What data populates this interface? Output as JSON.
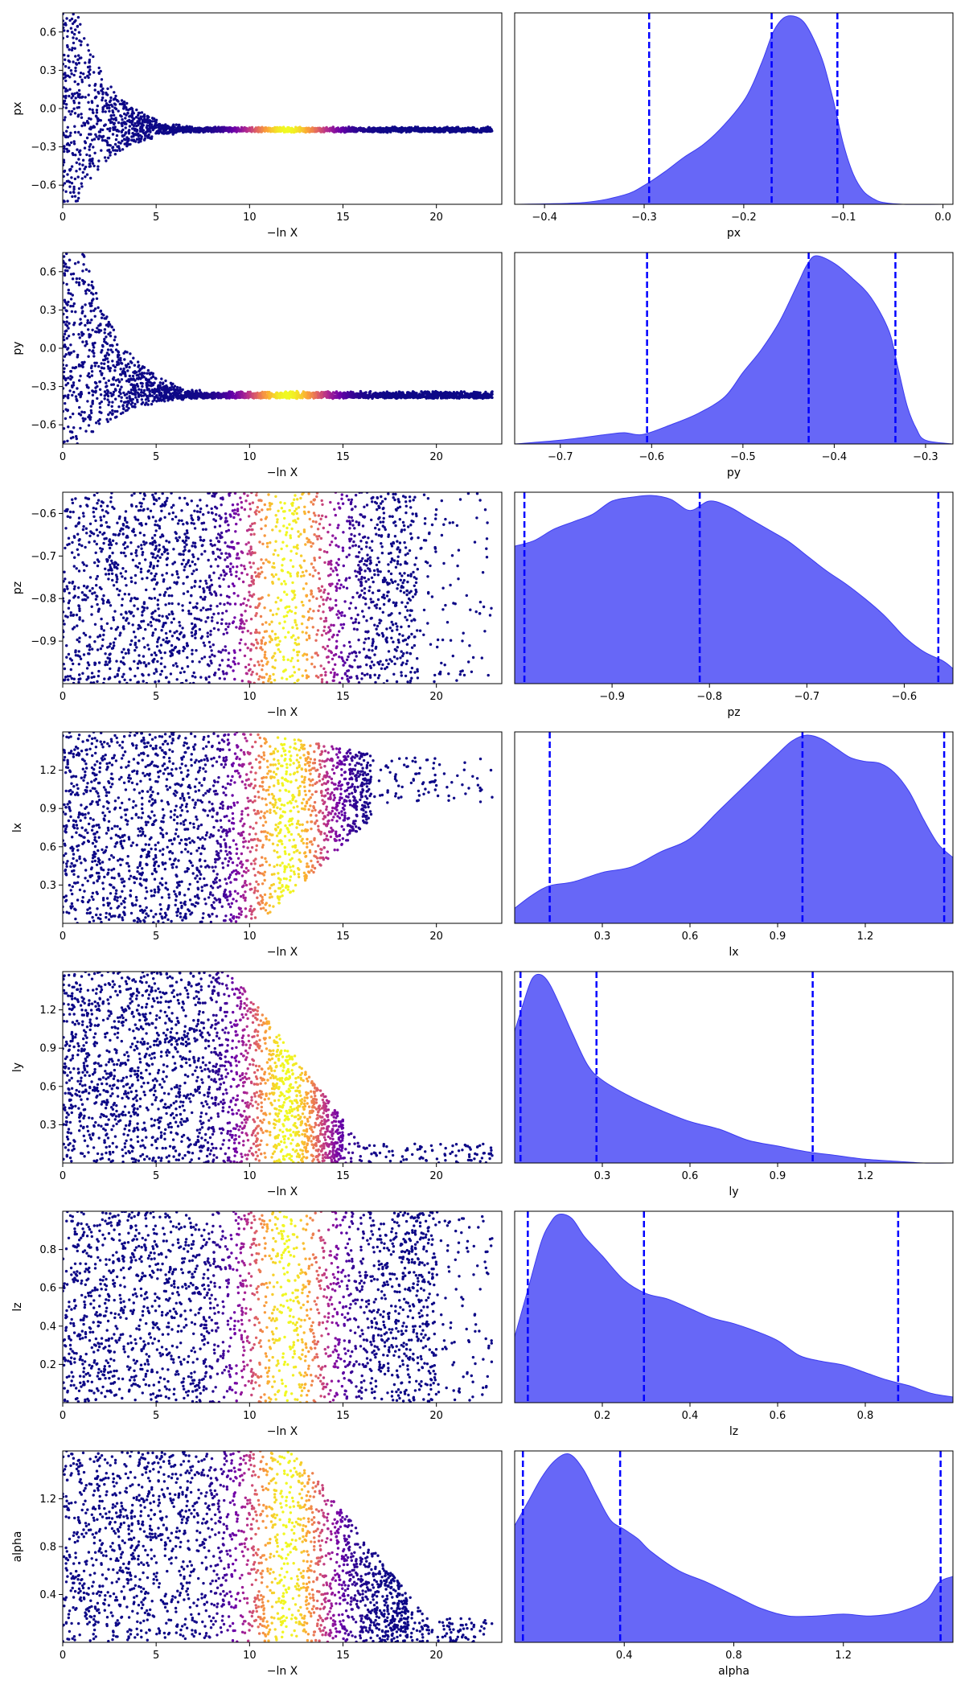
{
  "figure": {
    "trace_color_map": "plasma",
    "posterior_fill_color": "#5f5ff7",
    "posterior_edge_color": "#3b3bf0",
    "quantile_line_color": "#0000ff",
    "quantile_line_style": "dashed",
    "background_color": "#ffffff"
  },
  "chart_data": [
    {
      "type": "scatter",
      "role": "trace",
      "param": "px",
      "xlabel": "−ln X",
      "ylabel": "px",
      "xlim": [
        0,
        23.5
      ],
      "ylim": [
        -0.75,
        0.75
      ],
      "xticks": [
        0,
        5,
        10,
        15,
        20
      ],
      "xtick_labels": [
        "0",
        "5",
        "10",
        "15",
        "20"
      ],
      "yticks": [
        0.6,
        0.3,
        0.0,
        -0.3,
        -0.6
      ],
      "ytick_labels": [
        "0.6",
        "0.3",
        "0.0",
        "−0.3",
        "−0.6"
      ],
      "color_peak_x": 12.0,
      "shape": "funnel",
      "converged_value": -0.17,
      "converge_start": 0.8,
      "converge_rate": 0.55,
      "envelope_tail": 0.03
    },
    {
      "type": "area",
      "role": "posterior",
      "param": "px",
      "xlabel": "px",
      "xlim": [
        -0.43,
        0.01
      ],
      "xticks": [
        -0.4,
        -0.3,
        -0.2,
        -0.1,
        0.0
      ],
      "xtick_labels": [
        "−0.4",
        "−0.3",
        "−0.2",
        "−0.1",
        "0.0"
      ],
      "x": [
        -0.43,
        -0.36,
        -0.32,
        -0.3,
        -0.28,
        -0.26,
        -0.24,
        -0.22,
        -0.2,
        -0.19,
        -0.18,
        -0.17,
        -0.16,
        -0.15,
        -0.14,
        -0.13,
        -0.12,
        -0.11,
        -0.1,
        -0.09,
        -0.08,
        -0.07,
        -0.06,
        -0.04,
        0.01
      ],
      "y": [
        0.0,
        0.01,
        0.05,
        0.1,
        0.17,
        0.25,
        0.32,
        0.42,
        0.55,
        0.65,
        0.78,
        0.92,
        0.99,
        1.0,
        0.97,
        0.88,
        0.75,
        0.55,
        0.32,
        0.16,
        0.07,
        0.03,
        0.01,
        0.0,
        0.0
      ],
      "quantiles": [
        -0.295,
        -0.172,
        -0.106
      ]
    },
    {
      "type": "scatter",
      "role": "trace",
      "param": "py",
      "xlabel": "−ln X",
      "ylabel": "py",
      "xlim": [
        0,
        23.5
      ],
      "ylim": [
        -0.75,
        0.75
      ],
      "xticks": [
        0,
        5,
        10,
        15,
        20
      ],
      "xtick_labels": [
        "0",
        "5",
        "10",
        "15",
        "20"
      ],
      "yticks": [
        0.6,
        0.3,
        0.0,
        -0.3,
        -0.6
      ],
      "ytick_labels": [
        "0.6",
        "0.3",
        "0.0",
        "−0.3",
        "−0.6"
      ],
      "color_peak_x": 12.0,
      "shape": "funnel",
      "converged_value": -0.38,
      "converge_start": 1.2,
      "converge_rate": 0.5,
      "envelope_tail": 0.04
    },
    {
      "type": "area",
      "role": "posterior",
      "param": "py",
      "xlabel": "py",
      "xlim": [
        -0.75,
        -0.27
      ],
      "xticks": [
        -0.7,
        -0.6,
        -0.5,
        -0.4,
        -0.3
      ],
      "xtick_labels": [
        "−0.7",
        "−0.6",
        "−0.5",
        "−0.4",
        "−0.3"
      ],
      "x": [
        -0.75,
        -0.7,
        -0.65,
        -0.63,
        -0.61,
        -0.58,
        -0.55,
        -0.52,
        -0.5,
        -0.48,
        -0.46,
        -0.44,
        -0.43,
        -0.42,
        -0.4,
        -0.38,
        -0.36,
        -0.34,
        -0.33,
        -0.32,
        -0.31,
        -0.3,
        -0.27
      ],
      "y": [
        0.0,
        0.02,
        0.05,
        0.06,
        0.05,
        0.1,
        0.16,
        0.25,
        0.38,
        0.5,
        0.65,
        0.85,
        0.95,
        1.0,
        0.96,
        0.88,
        0.78,
        0.6,
        0.4,
        0.2,
        0.08,
        0.02,
        0.0
      ],
      "quantiles": [
        -0.605,
        -0.428,
        -0.333
      ]
    },
    {
      "type": "scatter",
      "role": "trace",
      "param": "pz",
      "xlabel": "−ln X",
      "ylabel": "pz",
      "xlim": [
        0,
        23.5
      ],
      "ylim": [
        -1.0,
        -0.55
      ],
      "xticks": [
        0,
        5,
        10,
        15,
        20
      ],
      "xtick_labels": [
        "0",
        "5",
        "10",
        "15",
        "20"
      ],
      "yticks": [
        -0.6,
        -0.7,
        -0.8,
        -0.9
      ],
      "ytick_labels": [
        "−0.6",
        "−0.7",
        "−0.8",
        "−0.9"
      ],
      "color_peak_x": 12.0,
      "shape": "uniform",
      "sparse_start": 17.0,
      "x_extent": 23.0
    },
    {
      "type": "area",
      "role": "posterior",
      "param": "pz",
      "xlabel": "pz",
      "xlim": [
        -1.0,
        -0.55
      ],
      "xticks": [
        -0.9,
        -0.8,
        -0.7,
        -0.6
      ],
      "xtick_labels": [
        "−0.9",
        "−0.8",
        "−0.7",
        "−0.6"
      ],
      "x": [
        -1.0,
        -0.98,
        -0.96,
        -0.94,
        -0.92,
        -0.9,
        -0.88,
        -0.86,
        -0.84,
        -0.82,
        -0.8,
        -0.78,
        -0.76,
        -0.74,
        -0.72,
        -0.7,
        -0.68,
        -0.66,
        -0.64,
        -0.62,
        -0.6,
        -0.58,
        -0.56,
        -0.55
      ],
      "y": [
        0.73,
        0.76,
        0.82,
        0.86,
        0.9,
        0.97,
        0.99,
        1.0,
        0.98,
        0.92,
        0.97,
        0.94,
        0.88,
        0.82,
        0.76,
        0.68,
        0.6,
        0.53,
        0.45,
        0.36,
        0.25,
        0.17,
        0.12,
        0.08
      ],
      "quantiles": [
        -0.99,
        -0.81,
        -0.565
      ]
    },
    {
      "type": "scatter",
      "role": "trace",
      "param": "lx",
      "xlabel": "−ln X",
      "ylabel": "lx",
      "xlim": [
        0,
        23.5
      ],
      "ylim": [
        0.0,
        1.5
      ],
      "xticks": [
        0,
        5,
        10,
        15,
        20
      ],
      "xtick_labels": [
        "0",
        "5",
        "10",
        "15",
        "20"
      ],
      "yticks": [
        1.2,
        0.9,
        0.6,
        0.3
      ],
      "ytick_labels": [
        "1.2",
        "0.9",
        "0.6",
        "0.3"
      ],
      "color_peak_x": 12.0,
      "shape": "narrow_up",
      "narrow_start": 10.5,
      "narrow_to": [
        0.95,
        1.3
      ],
      "x_extent": 23.0
    },
    {
      "type": "area",
      "role": "posterior",
      "param": "lx",
      "xlabel": "lx",
      "xlim": [
        0.0,
        1.5
      ],
      "xticks": [
        0.3,
        0.6,
        0.9,
        1.2
      ],
      "xtick_labels": [
        "0.3",
        "0.6",
        "0.9",
        "1.2"
      ],
      "x": [
        0.0,
        0.06,
        0.12,
        0.2,
        0.3,
        0.4,
        0.5,
        0.6,
        0.7,
        0.8,
        0.9,
        0.95,
        1.0,
        1.05,
        1.1,
        1.15,
        1.2,
        1.25,
        1.3,
        1.35,
        1.4,
        1.45,
        1.5
      ],
      "y": [
        0.08,
        0.15,
        0.2,
        0.22,
        0.27,
        0.3,
        0.38,
        0.45,
        0.6,
        0.75,
        0.9,
        0.97,
        1.0,
        0.98,
        0.93,
        0.88,
        0.86,
        0.85,
        0.8,
        0.7,
        0.55,
        0.42,
        0.35
      ],
      "quantiles": [
        0.12,
        0.985,
        1.47
      ]
    },
    {
      "type": "scatter",
      "role": "trace",
      "param": "ly",
      "xlabel": "−ln X",
      "ylabel": "ly",
      "xlim": [
        0,
        23.5
      ],
      "ylim": [
        0.0,
        1.5
      ],
      "xticks": [
        0,
        5,
        10,
        15,
        20
      ],
      "xtick_labels": [
        "0",
        "5",
        "10",
        "15",
        "20"
      ],
      "yticks": [
        1.2,
        0.9,
        0.6,
        0.3
      ],
      "ytick_labels": [
        "1.2",
        "0.9",
        "0.6",
        "0.3"
      ],
      "color_peak_x": 12.0,
      "shape": "narrow_down",
      "narrow_start": 9.0,
      "narrow_to": [
        0.0,
        0.15
      ],
      "x_extent": 23.0
    },
    {
      "type": "area",
      "role": "posterior",
      "param": "ly",
      "xlabel": "ly",
      "xlim": [
        0.0,
        1.5
      ],
      "xticks": [
        0.3,
        0.6,
        0.9,
        1.2
      ],
      "xtick_labels": [
        "0.3",
        "0.6",
        "0.9",
        "1.2"
      ],
      "x": [
        0.0,
        0.03,
        0.06,
        0.09,
        0.12,
        0.16,
        0.2,
        0.25,
        0.3,
        0.4,
        0.5,
        0.6,
        0.7,
        0.8,
        0.9,
        1.0,
        1.1,
        1.2,
        1.3,
        1.4,
        1.5
      ],
      "y": [
        0.7,
        0.85,
        0.98,
        1.0,
        0.95,
        0.82,
        0.68,
        0.52,
        0.44,
        0.35,
        0.28,
        0.22,
        0.18,
        0.12,
        0.09,
        0.06,
        0.04,
        0.02,
        0.01,
        0.0,
        0.0
      ],
      "quantiles": [
        0.02,
        0.28,
        1.02
      ]
    },
    {
      "type": "scatter",
      "role": "trace",
      "param": "lz",
      "xlabel": "−ln X",
      "ylabel": "lz",
      "xlim": [
        0,
        23.5
      ],
      "ylim": [
        0.0,
        1.0
      ],
      "xticks": [
        0,
        5,
        10,
        15,
        20
      ],
      "xtick_labels": [
        "0",
        "5",
        "10",
        "15",
        "20"
      ],
      "yticks": [
        0.8,
        0.6,
        0.4,
        0.2
      ],
      "ytick_labels": [
        "0.8",
        "0.6",
        "0.4",
        "0.2"
      ],
      "color_peak_x": 12.0,
      "shape": "uniform",
      "sparse_start": 18.0,
      "x_extent": 23.0
    },
    {
      "type": "area",
      "role": "posterior",
      "param": "lz",
      "xlabel": "lz",
      "xlim": [
        0.0,
        1.0
      ],
      "xticks": [
        0.2,
        0.4,
        0.6,
        0.8
      ],
      "xtick_labels": [
        "0.2",
        "0.4",
        "0.6",
        "0.8"
      ],
      "x": [
        0.0,
        0.03,
        0.06,
        0.08,
        0.1,
        0.13,
        0.16,
        0.2,
        0.25,
        0.3,
        0.35,
        0.4,
        0.45,
        0.5,
        0.55,
        0.6,
        0.65,
        0.7,
        0.75,
        0.8,
        0.85,
        0.9,
        0.95,
        1.0
      ],
      "y": [
        0.35,
        0.6,
        0.85,
        0.95,
        1.0,
        0.98,
        0.88,
        0.78,
        0.65,
        0.58,
        0.55,
        0.5,
        0.45,
        0.42,
        0.38,
        0.33,
        0.25,
        0.22,
        0.2,
        0.16,
        0.12,
        0.09,
        0.05,
        0.03
      ],
      "quantiles": [
        0.03,
        0.295,
        0.875
      ]
    },
    {
      "type": "scatter",
      "role": "trace",
      "param": "alpha",
      "xlabel": "−ln X",
      "ylabel": "alpha",
      "xlim": [
        0,
        23.5
      ],
      "ylim": [
        0.0,
        1.6
      ],
      "xticks": [
        0,
        5,
        10,
        15,
        20
      ],
      "xtick_labels": [
        "0",
        "5",
        "10",
        "15",
        "20"
      ],
      "yticks": [
        1.2,
        0.8,
        0.4
      ],
      "ytick_labels": [
        "1.2",
        "0.8",
        "0.4"
      ],
      "color_peak_x": 12.0,
      "shape": "narrow_down",
      "narrow_start": 12.5,
      "narrow_to": [
        0.0,
        0.2
      ],
      "x_extent": 23.0
    },
    {
      "type": "area",
      "role": "posterior",
      "param": "alpha",
      "xlabel": "alpha",
      "xlim": [
        0.0,
        1.6
      ],
      "xticks": [
        0.4,
        0.8,
        1.2
      ],
      "xtick_labels": [
        "0.4",
        "0.8",
        "1.2"
      ],
      "x": [
        0.0,
        0.05,
        0.1,
        0.15,
        0.2,
        0.25,
        0.3,
        0.35,
        0.4,
        0.45,
        0.5,
        0.6,
        0.7,
        0.8,
        0.9,
        1.0,
        1.1,
        1.2,
        1.3,
        1.4,
        1.5,
        1.55,
        1.6
      ],
      "y": [
        0.62,
        0.75,
        0.88,
        0.97,
        1.0,
        0.92,
        0.78,
        0.65,
        0.6,
        0.55,
        0.48,
        0.38,
        0.32,
        0.25,
        0.18,
        0.14,
        0.14,
        0.15,
        0.14,
        0.16,
        0.22,
        0.32,
        0.35
      ],
      "quantiles": [
        0.03,
        0.385,
        1.555
      ]
    }
  ]
}
